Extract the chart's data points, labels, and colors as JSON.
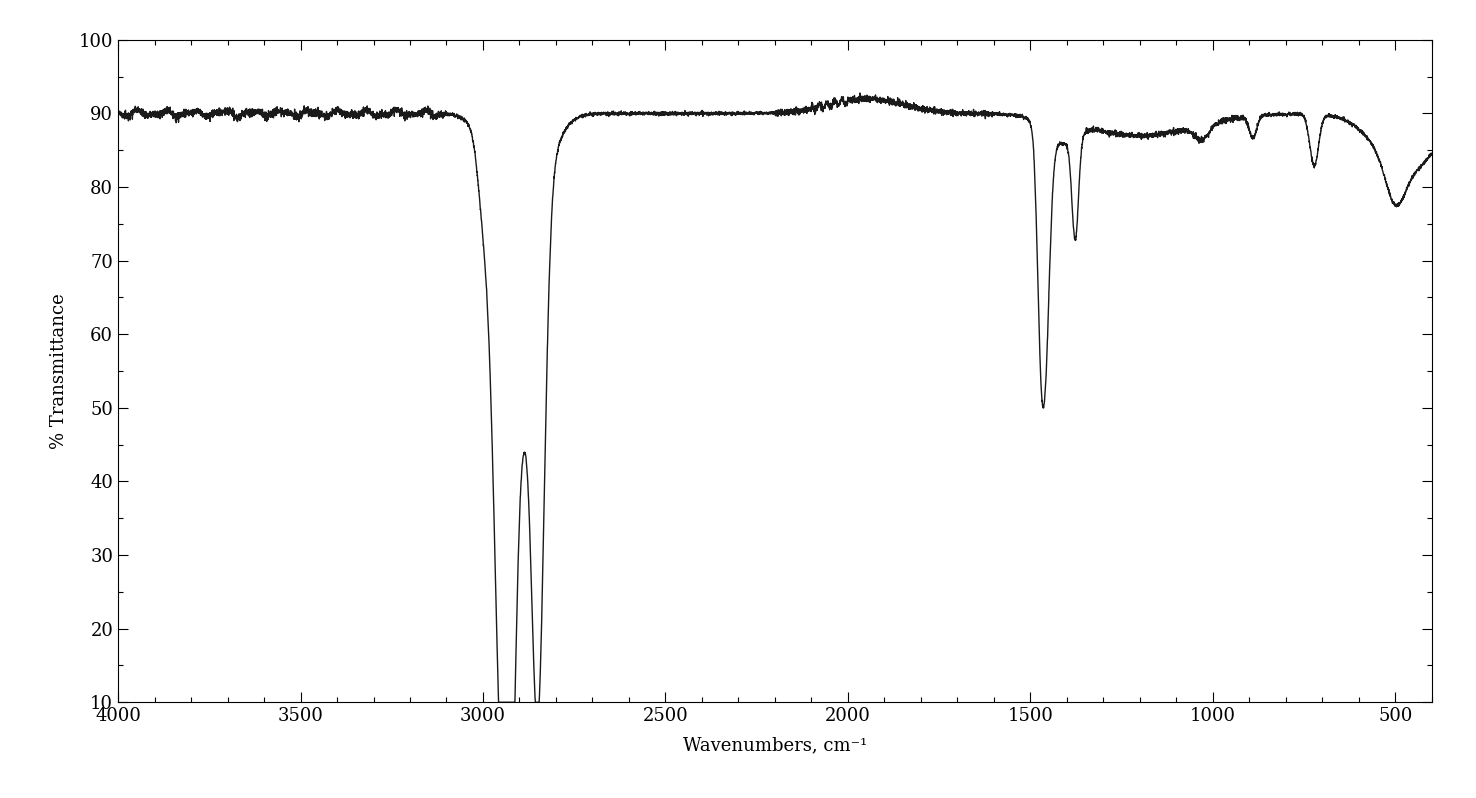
{
  "title": "",
  "xlabel": "Wavenumbers, cm⁻¹",
  "ylabel": "% Transmittance",
  "xlim": [
    4000,
    400
  ],
  "ylim": [
    10,
    100
  ],
  "yticks": [
    10,
    20,
    30,
    40,
    50,
    60,
    70,
    80,
    90,
    100
  ],
  "xticks": [
    4000,
    3500,
    3000,
    2500,
    2000,
    1500,
    1000,
    500
  ],
  "background_color": "#ffffff",
  "line_color": "#1a1a1a",
  "line_width": 1.0,
  "font_family": "DejaVu Serif",
  "noise_scale": 0.12,
  "baseline": 90.0
}
